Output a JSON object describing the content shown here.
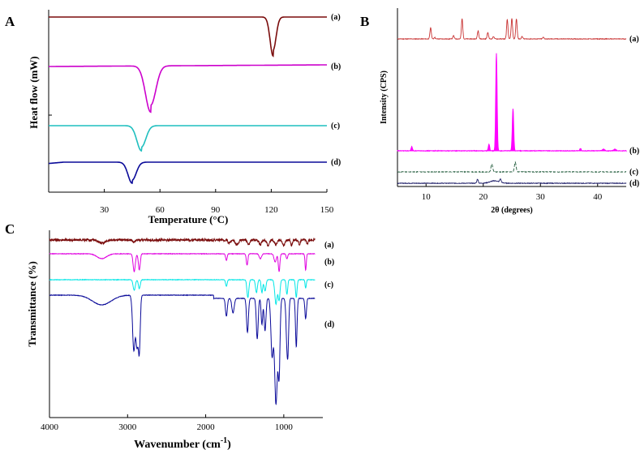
{
  "chart_data": [
    {
      "panel": "A",
      "type": "line",
      "xlabel": "Temperature (°C)",
      "ylabel": "Heat flow (mW)",
      "xlim": [
        0,
        150
      ],
      "xticks": [
        30,
        60,
        90,
        120,
        150
      ],
      "series": [
        {
          "name": "(a)",
          "color": "#7a0c0c",
          "peak_x": 121
        },
        {
          "name": "(b)",
          "color": "#cc00cc",
          "peak_x": 55
        },
        {
          "name": "(c)",
          "color": "#1fbfbf",
          "peak_x": 50
        },
        {
          "name": "(d)",
          "color": "#0a0a99",
          "peak_x": 45
        }
      ]
    },
    {
      "panel": "B",
      "type": "line",
      "xlabel": "2θ (degrees)",
      "ylabel": "Intensity (CPS)",
      "xlim": [
        5,
        45
      ],
      "xticks": [
        10,
        20,
        30,
        40
      ],
      "series": [
        {
          "name": "(a)",
          "color": "#c83232",
          "peaks_2theta": [
            10.8,
            16.3,
            19.1,
            20.8,
            24.2,
            25.0,
            25.8
          ]
        },
        {
          "name": "(b)",
          "color": "#ff00ff",
          "peaks_2theta": [
            7.5,
            21.0,
            22.3,
            25.2,
            37.0
          ]
        },
        {
          "name": "(c)",
          "color": "#1f5a3a",
          "peaks_2theta": [
            21.5,
            25.6
          ]
        },
        {
          "name": "(d)",
          "color": "#1a1a66",
          "peaks_2theta": [
            19.0,
            23.0
          ]
        }
      ]
    },
    {
      "panel": "C",
      "type": "line",
      "xlabel": "Wavenumber (cm",
      "xlabel_sup": "-1",
      "xlabel_end": ")",
      "ylabel": "Transmittance (%)",
      "xlim": [
        4000,
        500
      ],
      "xticks": [
        4000,
        3000,
        2000,
        1000
      ],
      "series": [
        {
          "name": "(a)",
          "color": "#7a0c0c"
        },
        {
          "name": "(b)",
          "color": "#e000e0"
        },
        {
          "name": "(c)",
          "color": "#00e6e6"
        },
        {
          "name": "(d)",
          "color": "#0a0a99"
        }
      ]
    }
  ]
}
